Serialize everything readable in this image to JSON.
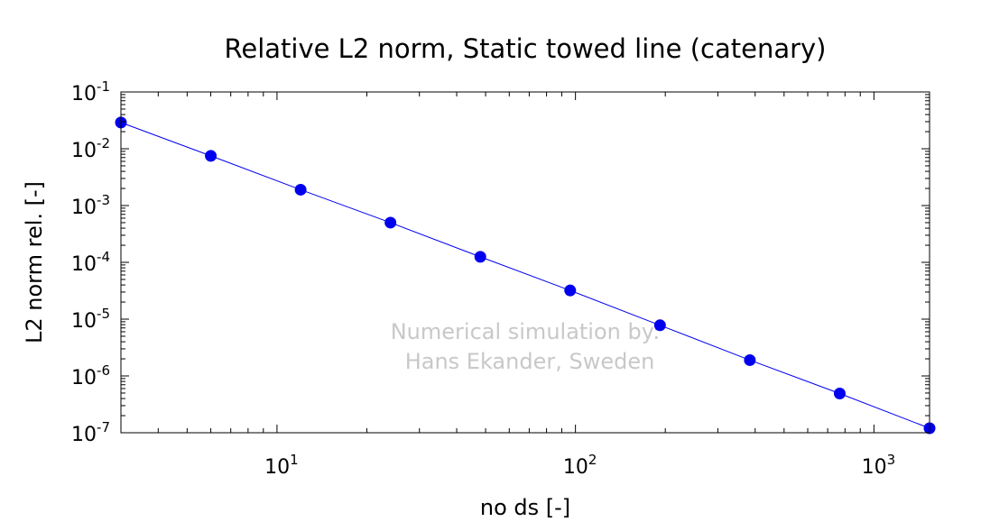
{
  "chart_data": {
    "type": "line",
    "title": "Relative L2 norm, Static towed line (catenary)",
    "xlabel": "no ds [-]",
    "ylabel": "L2 norm rel. [-]",
    "x_scale": "log",
    "y_scale": "log",
    "xlim": [
      3,
      1536
    ],
    "ylim": [
      1e-07,
      0.1
    ],
    "grid": false,
    "x_ticks": [
      {
        "value": 10,
        "base": "10",
        "exp": "1"
      },
      {
        "value": 100,
        "base": "10",
        "exp": "2"
      },
      {
        "value": 1000,
        "base": "10",
        "exp": "3"
      }
    ],
    "y_ticks": [
      {
        "value": 0.1,
        "base": "10",
        "exp": "-1"
      },
      {
        "value": 0.01,
        "base": "10",
        "exp": "-2"
      },
      {
        "value": 0.001,
        "base": "10",
        "exp": "-3"
      },
      {
        "value": 0.0001,
        "base": "10",
        "exp": "-4"
      },
      {
        "value": 1e-05,
        "base": "10",
        "exp": "-5"
      },
      {
        "value": 1e-06,
        "base": "10",
        "exp": "-6"
      },
      {
        "value": 1e-07,
        "base": "10",
        "exp": "-7"
      }
    ],
    "series": [
      {
        "color": "#0000ee",
        "x": [
          3,
          6,
          12,
          24,
          48,
          96,
          192,
          384,
          768,
          1536
        ],
        "y": [
          0.029,
          0.0075,
          0.0019,
          0.0005,
          0.000125,
          3.2e-05,
          7.8e-06,
          1.9e-06,
          4.9e-07,
          1.2e-07
        ]
      }
    ],
    "annotations": [
      "Numerical simulation by:",
      "Hans Ekander, Sweden"
    ]
  }
}
